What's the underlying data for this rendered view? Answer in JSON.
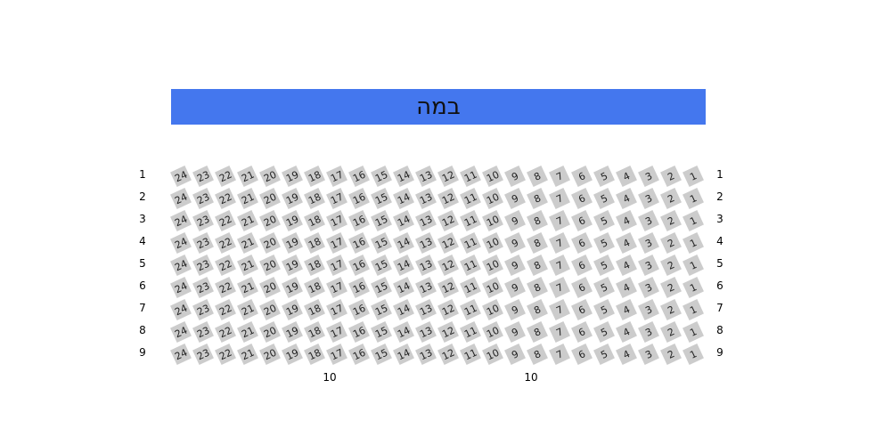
{
  "stage": {
    "label": "במה",
    "color": "#4477ee"
  },
  "rows": [
    "1",
    "2",
    "3",
    "4",
    "5",
    "6",
    "7",
    "8",
    "9"
  ],
  "seats": [
    "24",
    "23",
    "22",
    "21",
    "20",
    "19",
    "18",
    "17",
    "16",
    "15",
    "14",
    "13",
    "12",
    "11",
    "10",
    "9",
    "8",
    "7",
    "6",
    "5",
    "4",
    "3",
    "2",
    "1"
  ],
  "seat_color": "#cccccc",
  "bottom_labels": [
    "10",
    "10"
  ]
}
